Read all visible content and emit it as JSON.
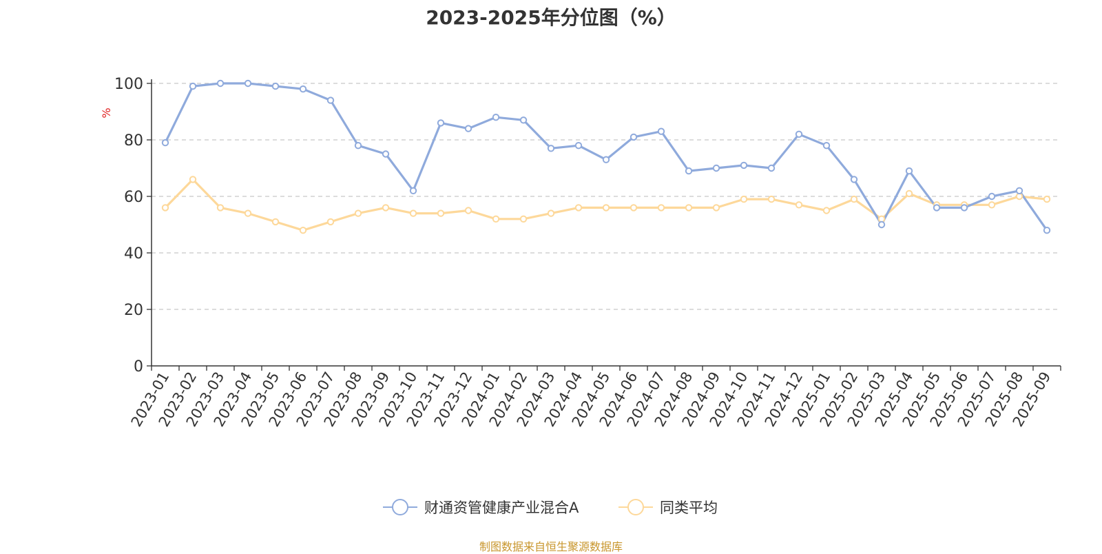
{
  "chart_data": {
    "type": "line",
    "title": "2023-2025年分位图（%）",
    "ylabel": "%",
    "xlabel": "",
    "ylim": [
      0,
      100
    ],
    "yticks": [
      0,
      20,
      40,
      60,
      80,
      100
    ],
    "grid": true,
    "legend_position": "bottom-center",
    "categories": [
      "2023-01",
      "2023-02",
      "2023-03",
      "2023-04",
      "2023-05",
      "2023-06",
      "2023-07",
      "2023-08",
      "2023-09",
      "2023-10",
      "2023-11",
      "2023-12",
      "2024-01",
      "2024-02",
      "2024-03",
      "2024-04",
      "2024-05",
      "2024-06",
      "2024-07",
      "2024-08",
      "2024-09",
      "2024-10",
      "2024-11",
      "2024-12",
      "2025-01",
      "2025-02",
      "2025-03",
      "2025-04",
      "2025-05",
      "2025-06",
      "2025-07",
      "2025-08",
      "2025-09"
    ],
    "series": [
      {
        "name": "财通资管健康产业混合A",
        "color": "#8faadc",
        "values": [
          79,
          99,
          100,
          100,
          99,
          98,
          94,
          78,
          75,
          62,
          86,
          84,
          88,
          87,
          77,
          78,
          73,
          81,
          83,
          69,
          70,
          71,
          70,
          82,
          78,
          66,
          50,
          69,
          56,
          56,
          60,
          62,
          48
        ]
      },
      {
        "name": "同类平均",
        "color": "#fdd89a",
        "values": [
          56,
          66,
          56,
          54,
          51,
          48,
          51,
          54,
          56,
          54,
          54,
          55,
          52,
          52,
          54,
          56,
          56,
          56,
          56,
          56,
          56,
          59,
          59,
          57,
          55,
          59,
          52,
          61,
          57,
          57,
          57,
          60,
          59
        ]
      }
    ]
  },
  "source_note": "制图数据来自恒生聚源数据库"
}
